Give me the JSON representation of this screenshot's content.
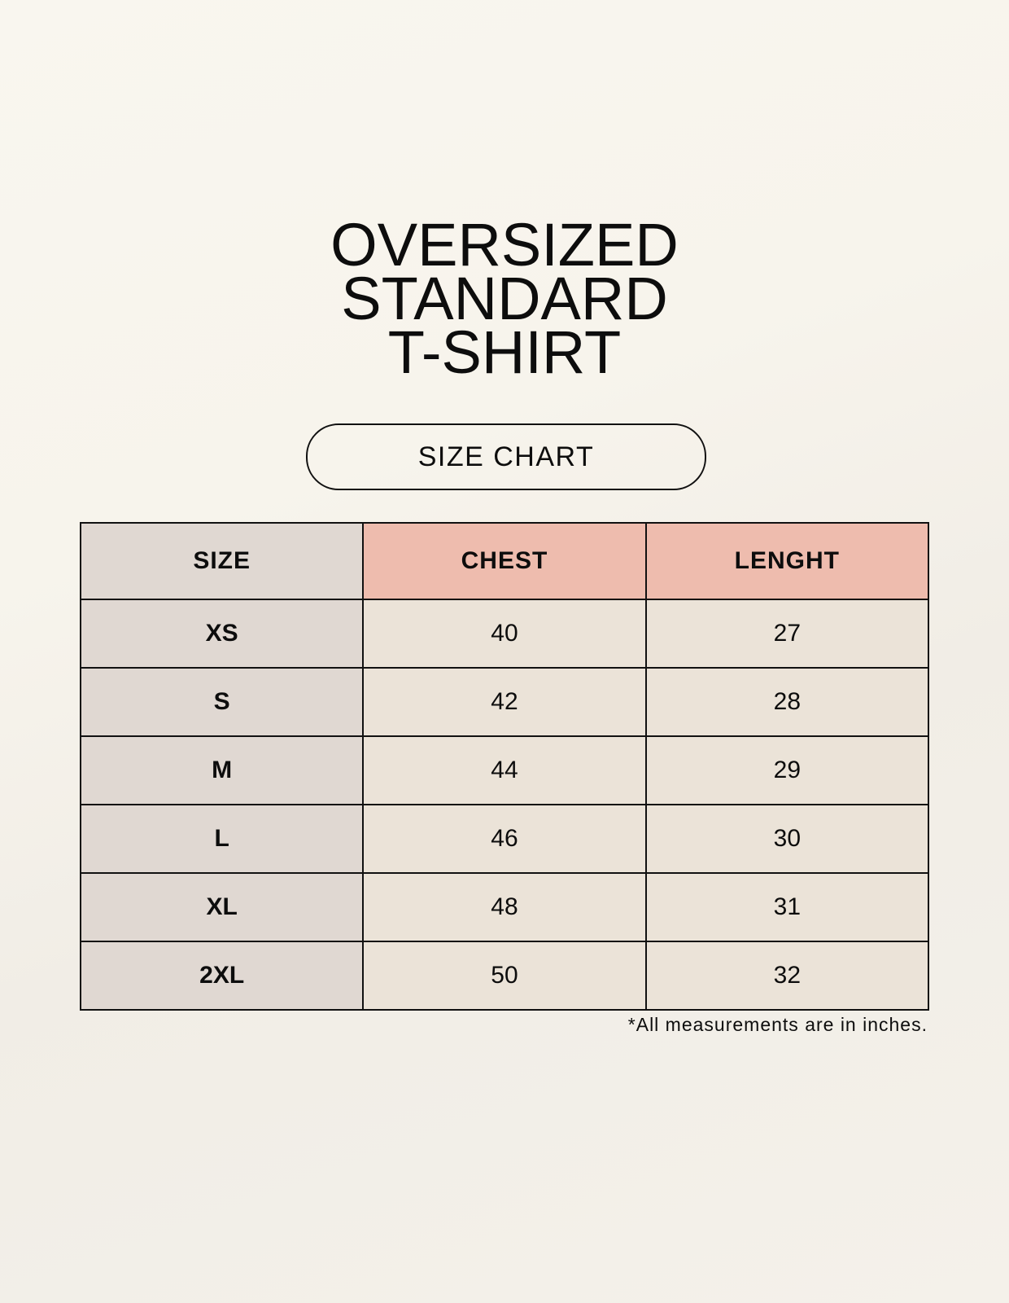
{
  "title_lines": [
    "OVERSIZED",
    "STANDARD",
    "T-SHIRT"
  ],
  "badge": "SIZE CHART",
  "table": {
    "headers": [
      "SIZE",
      "CHEST",
      "LENGHT"
    ],
    "rows": [
      [
        "XS",
        "40",
        "27"
      ],
      [
        "S",
        "42",
        "28"
      ],
      [
        "M",
        "44",
        "29"
      ],
      [
        "L",
        "46",
        "30"
      ],
      [
        "XL",
        "48",
        "31"
      ],
      [
        "2XL",
        "50",
        "32"
      ]
    ]
  },
  "footnote": "*All measurements are in inches.",
  "colors": {
    "background": "#f8f5ee",
    "size_column": "#e0d8d2",
    "header_accent": "#eebcae",
    "cell": "#ebe3d8"
  }
}
